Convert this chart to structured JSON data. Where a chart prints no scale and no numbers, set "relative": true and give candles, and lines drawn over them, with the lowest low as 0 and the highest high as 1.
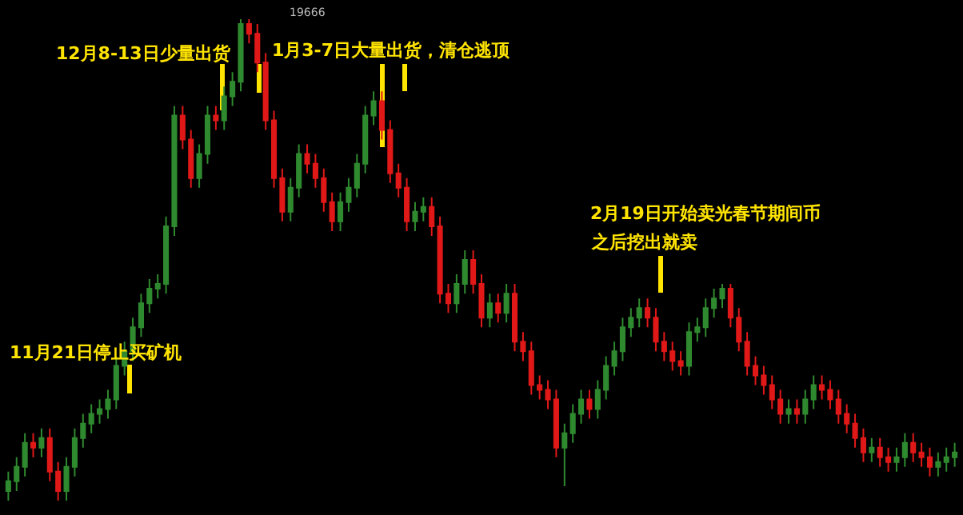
{
  "chart_data": {
    "type": "candlestick",
    "relative": true,
    "annotations": [
      "19666",
      "12月8-13日少量出货",
      "1月3-7日大量出货，清仓逃顶",
      "2月19日开始卖光春节期间币",
      "之后挖出就卖",
      "11月21日停止买矿机"
    ],
    "categories": [
      null,
      null,
      null,
      null,
      null,
      null,
      null,
      null,
      null,
      null,
      null,
      null,
      null,
      null,
      null,
      null,
      null,
      null,
      null,
      null,
      null,
      null,
      null,
      null,
      null,
      null,
      null,
      null,
      null,
      null,
      null,
      null,
      null,
      null,
      null,
      null,
      null,
      null,
      null,
      null,
      null,
      null,
      null,
      null,
      null,
      null,
      null,
      null,
      null,
      null,
      null,
      null,
      null,
      null,
      null,
      null,
      null,
      null,
      null,
      null,
      null,
      null,
      null,
      null,
      null,
      null,
      null,
      null,
      null,
      null,
      null,
      null,
      null,
      null,
      null,
      null,
      null,
      null,
      null,
      null,
      null,
      null,
      null,
      null,
      null,
      null,
      null,
      null,
      null,
      null,
      null,
      null,
      null,
      null,
      null,
      null,
      null,
      null,
      null,
      null,
      null,
      null,
      null,
      null,
      null,
      null,
      null,
      null,
      null,
      null,
      null,
      null,
      null,
      null,
      null
    ],
    "ohlc": [
      [
        0.02,
        0.06,
        0.0,
        0.04
      ],
      [
        0.04,
        0.09,
        0.02,
        0.07
      ],
      [
        0.07,
        0.14,
        0.05,
        0.12
      ],
      [
        0.12,
        0.14,
        0.09,
        0.11
      ],
      [
        0.11,
        0.15,
        0.09,
        0.13
      ],
      [
        0.13,
        0.15,
        0.04,
        0.06
      ],
      [
        0.06,
        0.08,
        0.0,
        0.02
      ],
      [
        0.02,
        0.09,
        0.0,
        0.07
      ],
      [
        0.07,
        0.15,
        0.05,
        0.13
      ],
      [
        0.13,
        0.18,
        0.11,
        0.16
      ],
      [
        0.16,
        0.2,
        0.14,
        0.18
      ],
      [
        0.18,
        0.21,
        0.16,
        0.19
      ],
      [
        0.19,
        0.23,
        0.17,
        0.21
      ],
      [
        0.21,
        0.3,
        0.19,
        0.28
      ],
      [
        0.28,
        0.33,
        0.26,
        0.31
      ],
      [
        0.31,
        0.38,
        0.29,
        0.36
      ],
      [
        0.36,
        0.43,
        0.34,
        0.41
      ],
      [
        0.41,
        0.46,
        0.39,
        0.44
      ],
      [
        0.44,
        0.47,
        0.42,
        0.45
      ],
      [
        0.45,
        0.59,
        0.43,
        0.57
      ],
      [
        0.57,
        0.82,
        0.55,
        0.8
      ],
      [
        0.8,
        0.82,
        0.73,
        0.75
      ],
      [
        0.75,
        0.77,
        0.65,
        0.67
      ],
      [
        0.67,
        0.74,
        0.65,
        0.72
      ],
      [
        0.72,
        0.82,
        0.7,
        0.8
      ],
      [
        0.8,
        0.82,
        0.77,
        0.79
      ],
      [
        0.79,
        0.86,
        0.77,
        0.84
      ],
      [
        0.84,
        0.89,
        0.82,
        0.87
      ],
      [
        0.87,
        1.0,
        0.85,
        0.99
      ],
      [
        0.99,
        1.0,
        0.95,
        0.97
      ],
      [
        0.97,
        0.99,
        0.89,
        0.91
      ],
      [
        0.91,
        0.93,
        0.77,
        0.79
      ],
      [
        0.79,
        0.81,
        0.65,
        0.67
      ],
      [
        0.67,
        0.69,
        0.58,
        0.6
      ],
      [
        0.6,
        0.67,
        0.58,
        0.65
      ],
      [
        0.65,
        0.74,
        0.63,
        0.72
      ],
      [
        0.72,
        0.74,
        0.68,
        0.7
      ],
      [
        0.7,
        0.72,
        0.65,
        0.67
      ],
      [
        0.67,
        0.69,
        0.6,
        0.62
      ],
      [
        0.62,
        0.64,
        0.56,
        0.58
      ],
      [
        0.58,
        0.64,
        0.56,
        0.62
      ],
      [
        0.62,
        0.67,
        0.6,
        0.65
      ],
      [
        0.65,
        0.72,
        0.63,
        0.7
      ],
      [
        0.7,
        0.82,
        0.68,
        0.8
      ],
      [
        0.8,
        0.85,
        0.78,
        0.83
      ],
      [
        0.83,
        0.85,
        0.75,
        0.77
      ],
      [
        0.77,
        0.79,
        0.66,
        0.68
      ],
      [
        0.68,
        0.7,
        0.63,
        0.65
      ],
      [
        0.65,
        0.67,
        0.56,
        0.58
      ],
      [
        0.58,
        0.62,
        0.56,
        0.6
      ],
      [
        0.6,
        0.63,
        0.58,
        0.61
      ],
      [
        0.61,
        0.63,
        0.55,
        0.57
      ],
      [
        0.57,
        0.59,
        0.41,
        0.43
      ],
      [
        0.43,
        0.45,
        0.39,
        0.41
      ],
      [
        0.41,
        0.47,
        0.39,
        0.45
      ],
      [
        0.45,
        0.52,
        0.43,
        0.5
      ],
      [
        0.5,
        0.52,
        0.43,
        0.45
      ],
      [
        0.45,
        0.47,
        0.36,
        0.38
      ],
      [
        0.38,
        0.43,
        0.36,
        0.41
      ],
      [
        0.41,
        0.43,
        0.37,
        0.39
      ],
      [
        0.39,
        0.45,
        0.37,
        0.43
      ],
      [
        0.43,
        0.45,
        0.31,
        0.33
      ],
      [
        0.33,
        0.35,
        0.29,
        0.31
      ],
      [
        0.31,
        0.33,
        0.22,
        0.24
      ],
      [
        0.24,
        0.26,
        0.21,
        0.23
      ],
      [
        0.23,
        0.25,
        0.19,
        0.21
      ],
      [
        0.21,
        0.23,
        0.09,
        0.11
      ],
      [
        0.11,
        0.16,
        0.03,
        0.14
      ],
      [
        0.14,
        0.2,
        0.12,
        0.18
      ],
      [
        0.18,
        0.23,
        0.16,
        0.21
      ],
      [
        0.21,
        0.23,
        0.17,
        0.19
      ],
      [
        0.19,
        0.25,
        0.17,
        0.23
      ],
      [
        0.23,
        0.3,
        0.21,
        0.28
      ],
      [
        0.28,
        0.33,
        0.26,
        0.31
      ],
      [
        0.31,
        0.38,
        0.29,
        0.36
      ],
      [
        0.36,
        0.4,
        0.34,
        0.38
      ],
      [
        0.38,
        0.42,
        0.36,
        0.4
      ],
      [
        0.4,
        0.42,
        0.36,
        0.38
      ],
      [
        0.38,
        0.4,
        0.31,
        0.33
      ],
      [
        0.33,
        0.35,
        0.29,
        0.31
      ],
      [
        0.31,
        0.33,
        0.27,
        0.29
      ],
      [
        0.29,
        0.31,
        0.26,
        0.28
      ],
      [
        0.28,
        0.37,
        0.26,
        0.35
      ],
      [
        0.35,
        0.38,
        0.33,
        0.36
      ],
      [
        0.36,
        0.42,
        0.34,
        0.4
      ],
      [
        0.4,
        0.44,
        0.38,
        0.42
      ],
      [
        0.42,
        0.45,
        0.4,
        0.44
      ],
      [
        0.44,
        0.45,
        0.36,
        0.38
      ],
      [
        0.38,
        0.4,
        0.31,
        0.33
      ],
      [
        0.33,
        0.35,
        0.26,
        0.28
      ],
      [
        0.28,
        0.3,
        0.24,
        0.26
      ],
      [
        0.26,
        0.28,
        0.22,
        0.24
      ],
      [
        0.24,
        0.26,
        0.19,
        0.21
      ],
      [
        0.21,
        0.23,
        0.16,
        0.18
      ],
      [
        0.18,
        0.21,
        0.16,
        0.19
      ],
      [
        0.19,
        0.21,
        0.16,
        0.18
      ],
      [
        0.18,
        0.23,
        0.16,
        0.21
      ],
      [
        0.21,
        0.26,
        0.19,
        0.24
      ],
      [
        0.24,
        0.26,
        0.21,
        0.23
      ],
      [
        0.23,
        0.25,
        0.19,
        0.21
      ],
      [
        0.21,
        0.23,
        0.16,
        0.18
      ],
      [
        0.18,
        0.2,
        0.14,
        0.16
      ],
      [
        0.16,
        0.18,
        0.11,
        0.13
      ],
      [
        0.13,
        0.15,
        0.08,
        0.1
      ],
      [
        0.1,
        0.13,
        0.08,
        0.11
      ],
      [
        0.11,
        0.13,
        0.07,
        0.09
      ],
      [
        0.09,
        0.11,
        0.06,
        0.08
      ],
      [
        0.08,
        0.11,
        0.06,
        0.09
      ],
      [
        0.09,
        0.14,
        0.07,
        0.12
      ],
      [
        0.12,
        0.14,
        0.08,
        0.1
      ],
      [
        0.1,
        0.12,
        0.07,
        0.09
      ],
      [
        0.09,
        0.11,
        0.05,
        0.07
      ],
      [
        0.07,
        0.1,
        0.05,
        0.08
      ],
      [
        0.08,
        0.11,
        0.06,
        0.09
      ],
      [
        0.09,
        0.12,
        0.07,
        0.1
      ]
    ]
  }
}
